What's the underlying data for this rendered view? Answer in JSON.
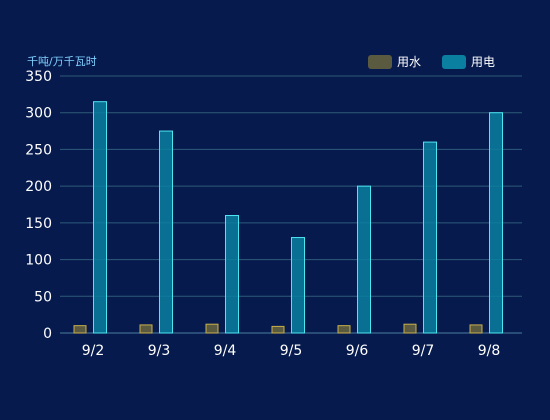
{
  "chart_data": {
    "type": "bar",
    "ylabel": "千吨/万千瓦时",
    "categories": [
      "9/2",
      "9/3",
      "9/4",
      "9/5",
      "9/6",
      "9/7",
      "9/8"
    ],
    "yticks": [
      0,
      50,
      100,
      150,
      200,
      250,
      300,
      350
    ],
    "ylim": [
      0,
      350
    ],
    "grid": true,
    "legend_position": "top-right",
    "series": [
      {
        "name": "用水",
        "values": [
          10,
          11,
          12,
          9,
          10,
          12,
          11
        ],
        "color": "#5a5a40",
        "edge": "#c9b04a"
      },
      {
        "name": "用电",
        "values": [
          315,
          275,
          160,
          130,
          200,
          260,
          300
        ],
        "color": "#0a7fa0",
        "edge": "#4ee6f2"
      }
    ]
  }
}
